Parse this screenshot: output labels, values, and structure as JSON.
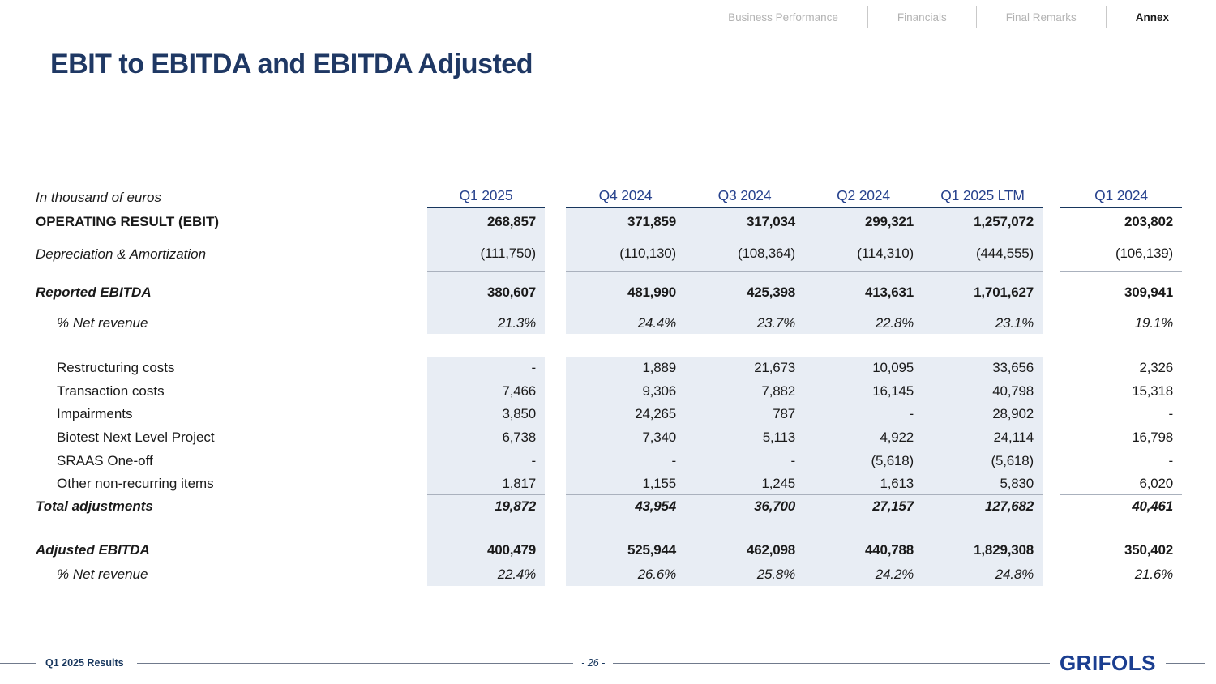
{
  "nav": {
    "items": [
      {
        "label": "Business Performance",
        "active": false
      },
      {
        "label": "Financials",
        "active": false
      },
      {
        "label": "Final Remarks",
        "active": false
      },
      {
        "label": "Annex",
        "active": true
      }
    ]
  },
  "title": "EBIT to EBITDA and EBITDA Adjusted",
  "table": {
    "unit_label": "In thousand of euros",
    "columns": [
      "Q1 2025",
      "Q4 2024",
      "Q3 2024",
      "Q2 2024",
      "Q1 2025 LTM",
      "Q1 2024"
    ],
    "rows": [
      {
        "label": "OPERATING RESULT (EBIT)",
        "values": [
          "268,857",
          "371,859",
          "317,034",
          "299,321",
          "1,257,072",
          "203,802"
        ]
      },
      {
        "label": "Depreciation & Amortization",
        "values": [
          "(111,750)",
          "(110,130)",
          "(108,364)",
          "(114,310)",
          "(444,555)",
          "(106,139)"
        ]
      },
      {
        "label": "Reported EBITDA",
        "values": [
          "380,607",
          "481,990",
          "425,398",
          "413,631",
          "1,701,627",
          "309,941"
        ]
      },
      {
        "label": "% Net revenue",
        "values": [
          "21.3%",
          "24.4%",
          "23.7%",
          "22.8%",
          "23.1%",
          "19.1%"
        ]
      },
      {
        "label": "Restructuring costs",
        "values": [
          "-",
          "1,889",
          "21,673",
          "10,095",
          "33,656",
          "2,326"
        ]
      },
      {
        "label": "Transaction costs",
        "values": [
          "7,466",
          "9,306",
          "7,882",
          "16,145",
          "40,798",
          "15,318"
        ]
      },
      {
        "label": "Impairments",
        "values": [
          "3,850",
          "24,265",
          "787",
          "-",
          "28,902",
          "-"
        ]
      },
      {
        "label": "Biotest Next Level Project",
        "values": [
          "6,738",
          "7,340",
          "5,113",
          "4,922",
          "24,114",
          "16,798"
        ]
      },
      {
        "label": "SRAAS One-off",
        "values": [
          "-",
          "-",
          "-",
          "(5,618)",
          "(5,618)",
          "-"
        ]
      },
      {
        "label": "Other non-recurring items",
        "values": [
          "1,817",
          "1,155",
          "1,245",
          "1,613",
          "5,830",
          "6,020"
        ]
      },
      {
        "label": "Total adjustments",
        "values": [
          "19,872",
          "43,954",
          "36,700",
          "27,157",
          "127,682",
          "40,461"
        ]
      },
      {
        "label": "Adjusted EBITDA",
        "values": [
          "400,479",
          "525,944",
          "462,098",
          "440,788",
          "1,829,308",
          "350,402"
        ]
      },
      {
        "label": "% Net revenue",
        "values": [
          "22.4%",
          "26.6%",
          "25.8%",
          "24.2%",
          "24.8%",
          "21.6%"
        ]
      }
    ]
  },
  "footer": {
    "left": "Q1 2025 Results",
    "page": "- 26 -",
    "logo": "GRIFOLS"
  },
  "colors": {
    "accent_navy": "#1f3864",
    "header_blue": "#27428d",
    "band_fill": "#e8edf4",
    "grifols_blue": "#1b3e90"
  }
}
